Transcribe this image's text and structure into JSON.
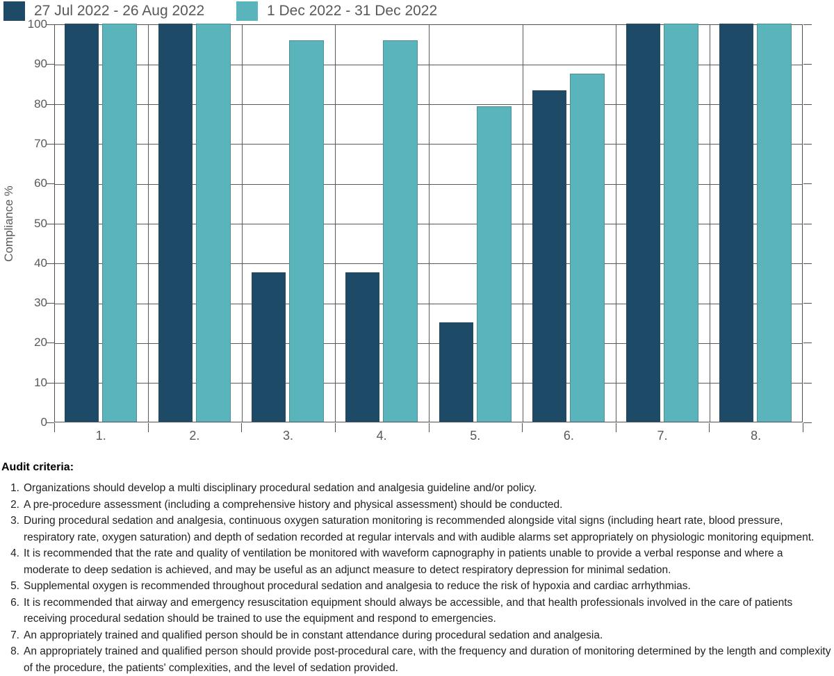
{
  "chart_data": {
    "type": "bar",
    "title": "",
    "xlabel": "",
    "ylabel": "Compliance %",
    "ylim": [
      0,
      100
    ],
    "yticks": [
      0,
      10,
      20,
      30,
      40,
      50,
      60,
      70,
      80,
      90,
      100
    ],
    "grid": true,
    "legend_position": "top-left",
    "categories": [
      "1.",
      "2.",
      "3.",
      "4.",
      "5.",
      "6.",
      "7.",
      "8."
    ],
    "series": [
      {
        "name": "27 Jul 2022 - 26 Aug 2022",
        "color": "#1d4a67",
        "values": [
          100,
          100,
          37.5,
          37.5,
          25,
          83.3,
          100,
          100
        ]
      },
      {
        "name": "1 Dec 2022 - 31 Dec 2022",
        "color": "#5ab4bb",
        "values": [
          100,
          100,
          95.8,
          95.8,
          79.2,
          87.5,
          100,
          100
        ]
      }
    ],
    "colors": {
      "gridline": "#5a5a5c",
      "axis": "#4f4f51",
      "axis_text": "#58595b"
    }
  },
  "audit": {
    "title": "Audit criteria:",
    "items": [
      "Organizations should develop a multi disciplinary procedural sedation and analgesia guideline and/or policy.",
      "A pre-procedure assessment (including a comprehensive history and physical assessment) should be conducted.",
      "During procedural sedation and analgesia, continuous oxygen saturation monitoring is recommended alongside vital signs (including heart rate, blood pressure, respiratory rate, oxygen saturation) and depth of sedation recorded at regular intervals and with audible alarms set appropriately on physiologic monitoring equipment.",
      "It is recommended that the rate and quality of ventilation be monitored with waveform capnography in patients unable to provide a verbal response and where a moderate to deep sedation is achieved, and may be useful as an adjunct measure to detect respiratory depression for minimal sedation.",
      "Supplemental oxygen is recommended throughout procedural sedation and analgesia to reduce the risk of hypoxia and cardiac arrhythmias.",
      "It is recommended that airway and emergency resuscitation equipment should always be accessible, and that health professionals involved in the care of patients receiving procedural sedation should be trained  to use the equipment and respond to emergencies.",
      "An appropriately trained and qualified person should be in constant attendance during procedural sedation and analgesia.",
      "An appropriately trained and qualified person should provide post-procedural care, with the frequency and duration of monitoring determined by the length and complexity of the procedure, the patients' complexities, and the level of sedation provided."
    ]
  }
}
